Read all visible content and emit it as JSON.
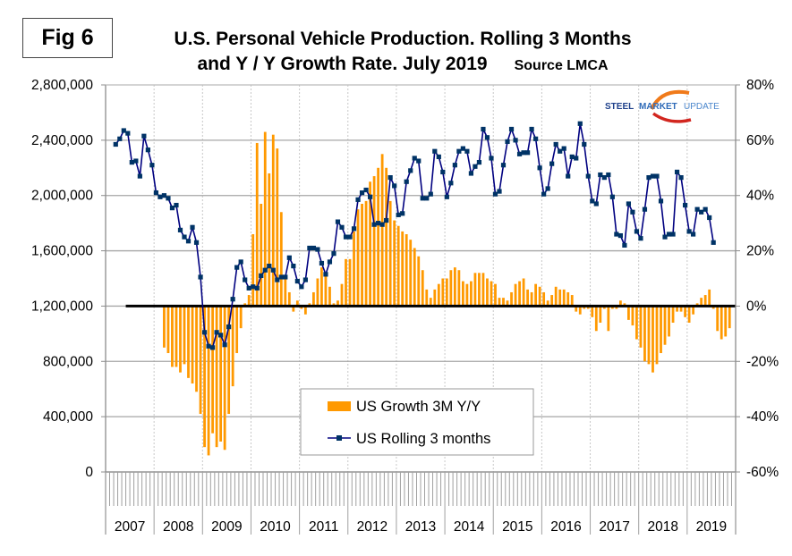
{
  "figure_label": "Fig 6",
  "title_line1": "U.S. Personal Vehicle Production. Rolling 3 Months",
  "title_line2": "and Y / Y Growth Rate. July 2019",
  "source": "Source LMCA",
  "logo": {
    "word1": "STEEL",
    "word2": "MARKET",
    "word3": "UPDATE"
  },
  "colors": {
    "bars": "#FF9900",
    "line": "#000080",
    "markers": "#003366",
    "zero_line": "#000000",
    "grid": "#a6a6a6"
  },
  "chart_data": {
    "type": "bar+line",
    "title": "U.S. Personal Vehicle Production. Rolling 3 Months and Y / Y Growth Rate. July 2019",
    "xlabel": "",
    "ylabel_left": "",
    "ylabel_right": "",
    "x_categories": [
      "2007",
      "2008",
      "2009",
      "2010",
      "2011",
      "2012",
      "2013",
      "2014",
      "2015",
      "2016",
      "2017",
      "2018",
      "2019"
    ],
    "x_granularity": "monthly",
    "x_start": "2007-03",
    "x_end": "2019-07",
    "y_left": {
      "min": 0,
      "max": 2800000,
      "ticks": [
        "0",
        "400,000",
        "800,000",
        "1,200,000",
        "1,600,000",
        "2,000,000",
        "2,400,000",
        "2,800,000"
      ],
      "tick_values": [
        0,
        400000,
        800000,
        1200000,
        1600000,
        2000000,
        2400000,
        2800000
      ]
    },
    "y_right": {
      "min": -60,
      "max": 80,
      "ticks": [
        "-60%",
        "-40%",
        "-20%",
        "0%",
        "20%",
        "40%",
        "60%",
        "80%"
      ],
      "tick_values": [
        -60,
        -40,
        -20,
        0,
        20,
        40,
        60,
        80
      ]
    },
    "grid": true,
    "legend_position": "bottom-center",
    "legend": [
      {
        "label": "US Growth 3M Y/Y",
        "type": "bar"
      },
      {
        "label": "US Rolling 3 months",
        "type": "line-marker"
      }
    ],
    "series": [
      {
        "name": "US Rolling 3 months",
        "axis": "left",
        "start": "2007-03",
        "values": [
          2370000,
          2410000,
          2470000,
          2450000,
          2240000,
          2250000,
          2140000,
          2430000,
          2330000,
          2220000,
          2020000,
          1990000,
          2000000,
          1980000,
          1910000,
          1930000,
          1750000,
          1700000,
          1670000,
          1770000,
          1660000,
          1410000,
          1010000,
          910000,
          900000,
          1010000,
          990000,
          920000,
          1050000,
          1250000,
          1480000,
          1520000,
          1390000,
          1330000,
          1340000,
          1330000,
          1420000,
          1460000,
          1490000,
          1460000,
          1390000,
          1410000,
          1410000,
          1550000,
          1490000,
          1380000,
          1340000,
          1390000,
          1620000,
          1620000,
          1610000,
          1510000,
          1430000,
          1520000,
          1580000,
          1810000,
          1770000,
          1700000,
          1700000,
          1760000,
          1970000,
          2020000,
          2040000,
          1990000,
          1790000,
          1800000,
          1790000,
          1820000,
          2130000,
          2070000,
          1860000,
          1870000,
          2100000,
          2180000,
          2270000,
          2250000,
          1980000,
          1980000,
          2010000,
          2320000,
          2280000,
          2170000,
          1990000,
          2090000,
          2220000,
          2320000,
          2340000,
          2320000,
          2160000,
          2210000,
          2240000,
          2480000,
          2420000,
          2270000,
          2010000,
          2030000,
          2220000,
          2390000,
          2480000,
          2400000,
          2300000,
          2310000,
          2310000,
          2480000,
          2410000,
          2200000,
          2010000,
          2050000,
          2230000,
          2370000,
          2320000,
          2340000,
          2140000,
          2280000,
          2270000,
          2520000,
          2370000,
          2140000,
          1960000,
          1940000,
          2150000,
          2130000,
          2150000,
          1990000,
          1720000,
          1710000,
          1640000,
          1940000,
          1880000,
          1740000,
          1690000,
          1900000,
          2130000,
          2140000,
          2140000,
          1960000,
          1700000,
          1720000,
          1720000,
          2170000,
          2130000,
          1930000,
          1740000,
          1720000,
          1900000,
          1880000,
          1900000,
          1840000,
          1660000
        ]
      },
      {
        "name": "US Growth 3M Y/Y",
        "axis": "right",
        "start": "2008-03",
        "unit": "%",
        "values": [
          -15,
          -17,
          -22,
          -22,
          -24,
          -21,
          -26,
          -28,
          -31,
          -39,
          -51,
          -54,
          -46,
          -51,
          -49,
          -52,
          -39,
          -29,
          -17,
          -8,
          1,
          4,
          26,
          59,
          37,
          63,
          48,
          62,
          57,
          34,
          11,
          5,
          -2,
          2,
          -1,
          -3,
          1,
          5,
          10,
          14,
          11,
          7,
          1,
          2,
          8,
          17,
          17,
          27,
          35,
          37,
          38,
          45,
          47,
          50,
          55,
          50,
          38,
          31,
          29,
          27,
          26,
          24,
          21,
          18,
          13,
          6,
          3,
          6,
          8,
          10,
          10,
          13,
          14,
          13,
          9,
          8,
          9,
          12,
          12,
          12,
          10,
          9,
          8,
          3,
          3,
          2,
          5,
          8,
          9,
          10,
          6,
          5,
          8,
          7,
          5,
          2,
          4,
          7,
          6,
          6,
          5,
          4,
          -2,
          -3,
          -1,
          -1,
          -4,
          -9,
          -6,
          -1,
          -9,
          -1,
          -1,
          2,
          1,
          -5,
          -7,
          -12,
          -15,
          -20,
          -21,
          -24,
          -21,
          -17,
          -14,
          -11,
          -6,
          -2,
          -2,
          -4,
          -6,
          -3,
          1,
          3,
          4,
          6,
          -1,
          -9,
          -12,
          -11,
          -8
        ]
      }
    ],
    "annotations": [
      "Fig 6",
      "Source LMCA",
      "STEEL MARKET UPDATE"
    ]
  }
}
